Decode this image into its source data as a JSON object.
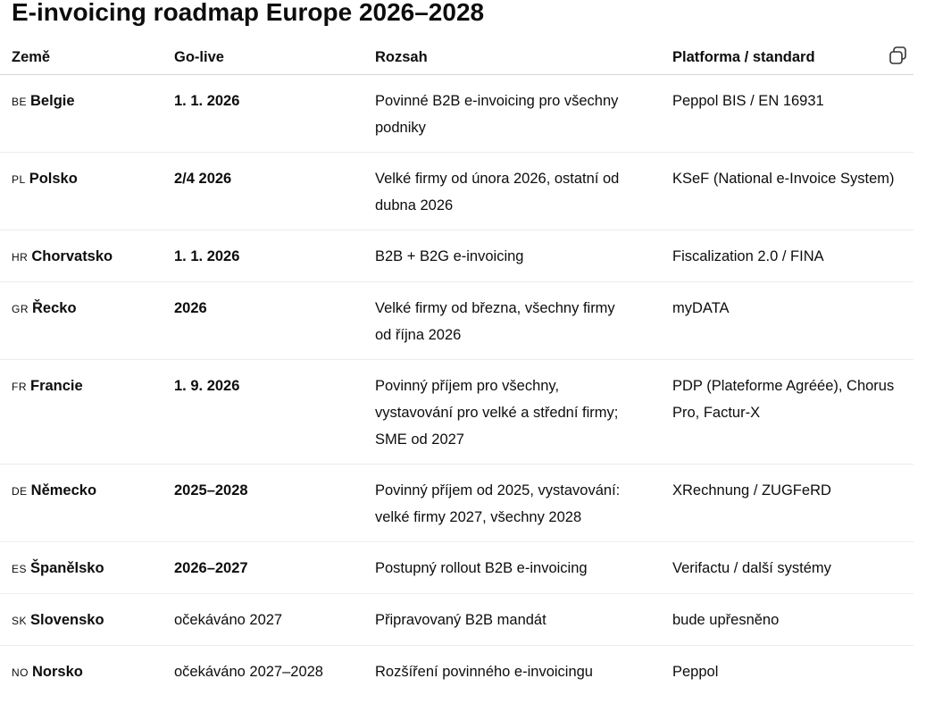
{
  "title": "E-invoicing roadmap Europe 2026–2028",
  "table": {
    "headers": [
      "Země",
      "Go-live",
      "Rozsah",
      "Platforma / standard"
    ],
    "rows": [
      {
        "code": "BE",
        "country": "Belgie",
        "go_live": "1. 1. 2026",
        "scope": "Povinné B2B e-invoicing pro všechny podniky",
        "platform": "Peppol BIS / EN 16931"
      },
      {
        "code": "PL",
        "country": "Polsko",
        "go_live": "2/4 2026",
        "scope": "Velké firmy od února 2026, ostatní od dubna 2026",
        "platform": "KSeF (National e-Invoice System)"
      },
      {
        "code": "HR",
        "country": "Chorvatsko",
        "go_live": "1. 1. 2026",
        "scope": "B2B + B2G e-invoicing",
        "platform": "Fiscalization 2.0 / FINA"
      },
      {
        "code": "GR",
        "country": "Řecko",
        "go_live": "2026",
        "scope": "Velké firmy od března, všechny firmy od října 2026",
        "platform": "myDATA"
      },
      {
        "code": "FR",
        "country": "Francie",
        "go_live": "1. 9. 2026",
        "scope": "Povinný příjem pro všechny, vystavování pro velké a střední firmy; SME od 2027",
        "platform": "PDP (Plateforme Agréée), Chorus Pro, Factur-X"
      },
      {
        "code": "DE",
        "country": "Německo",
        "go_live": "2025–2028",
        "scope": "Povinný příjem od 2025, vystavování: velké firmy 2027, všechny 2028",
        "platform": "XRechnung / ZUGFeRD"
      },
      {
        "code": "ES",
        "country": "Španělsko",
        "go_live": "2026–2027",
        "scope": "Postupný rollout B2B e-invoicing",
        "platform": "Verifactu / další systémy"
      },
      {
        "code": "SK",
        "country": "Slovensko",
        "go_live": "očekáváno 2027",
        "scope": "Připravovaný B2B mandát",
        "platform": "bude upřesněno"
      },
      {
        "code": "NO",
        "country": "Norsko",
        "go_live": "očekáváno 2027–2028",
        "scope": "Rozšíření povinného e-invoicingu",
        "platform": "Peppol"
      }
    ]
  }
}
